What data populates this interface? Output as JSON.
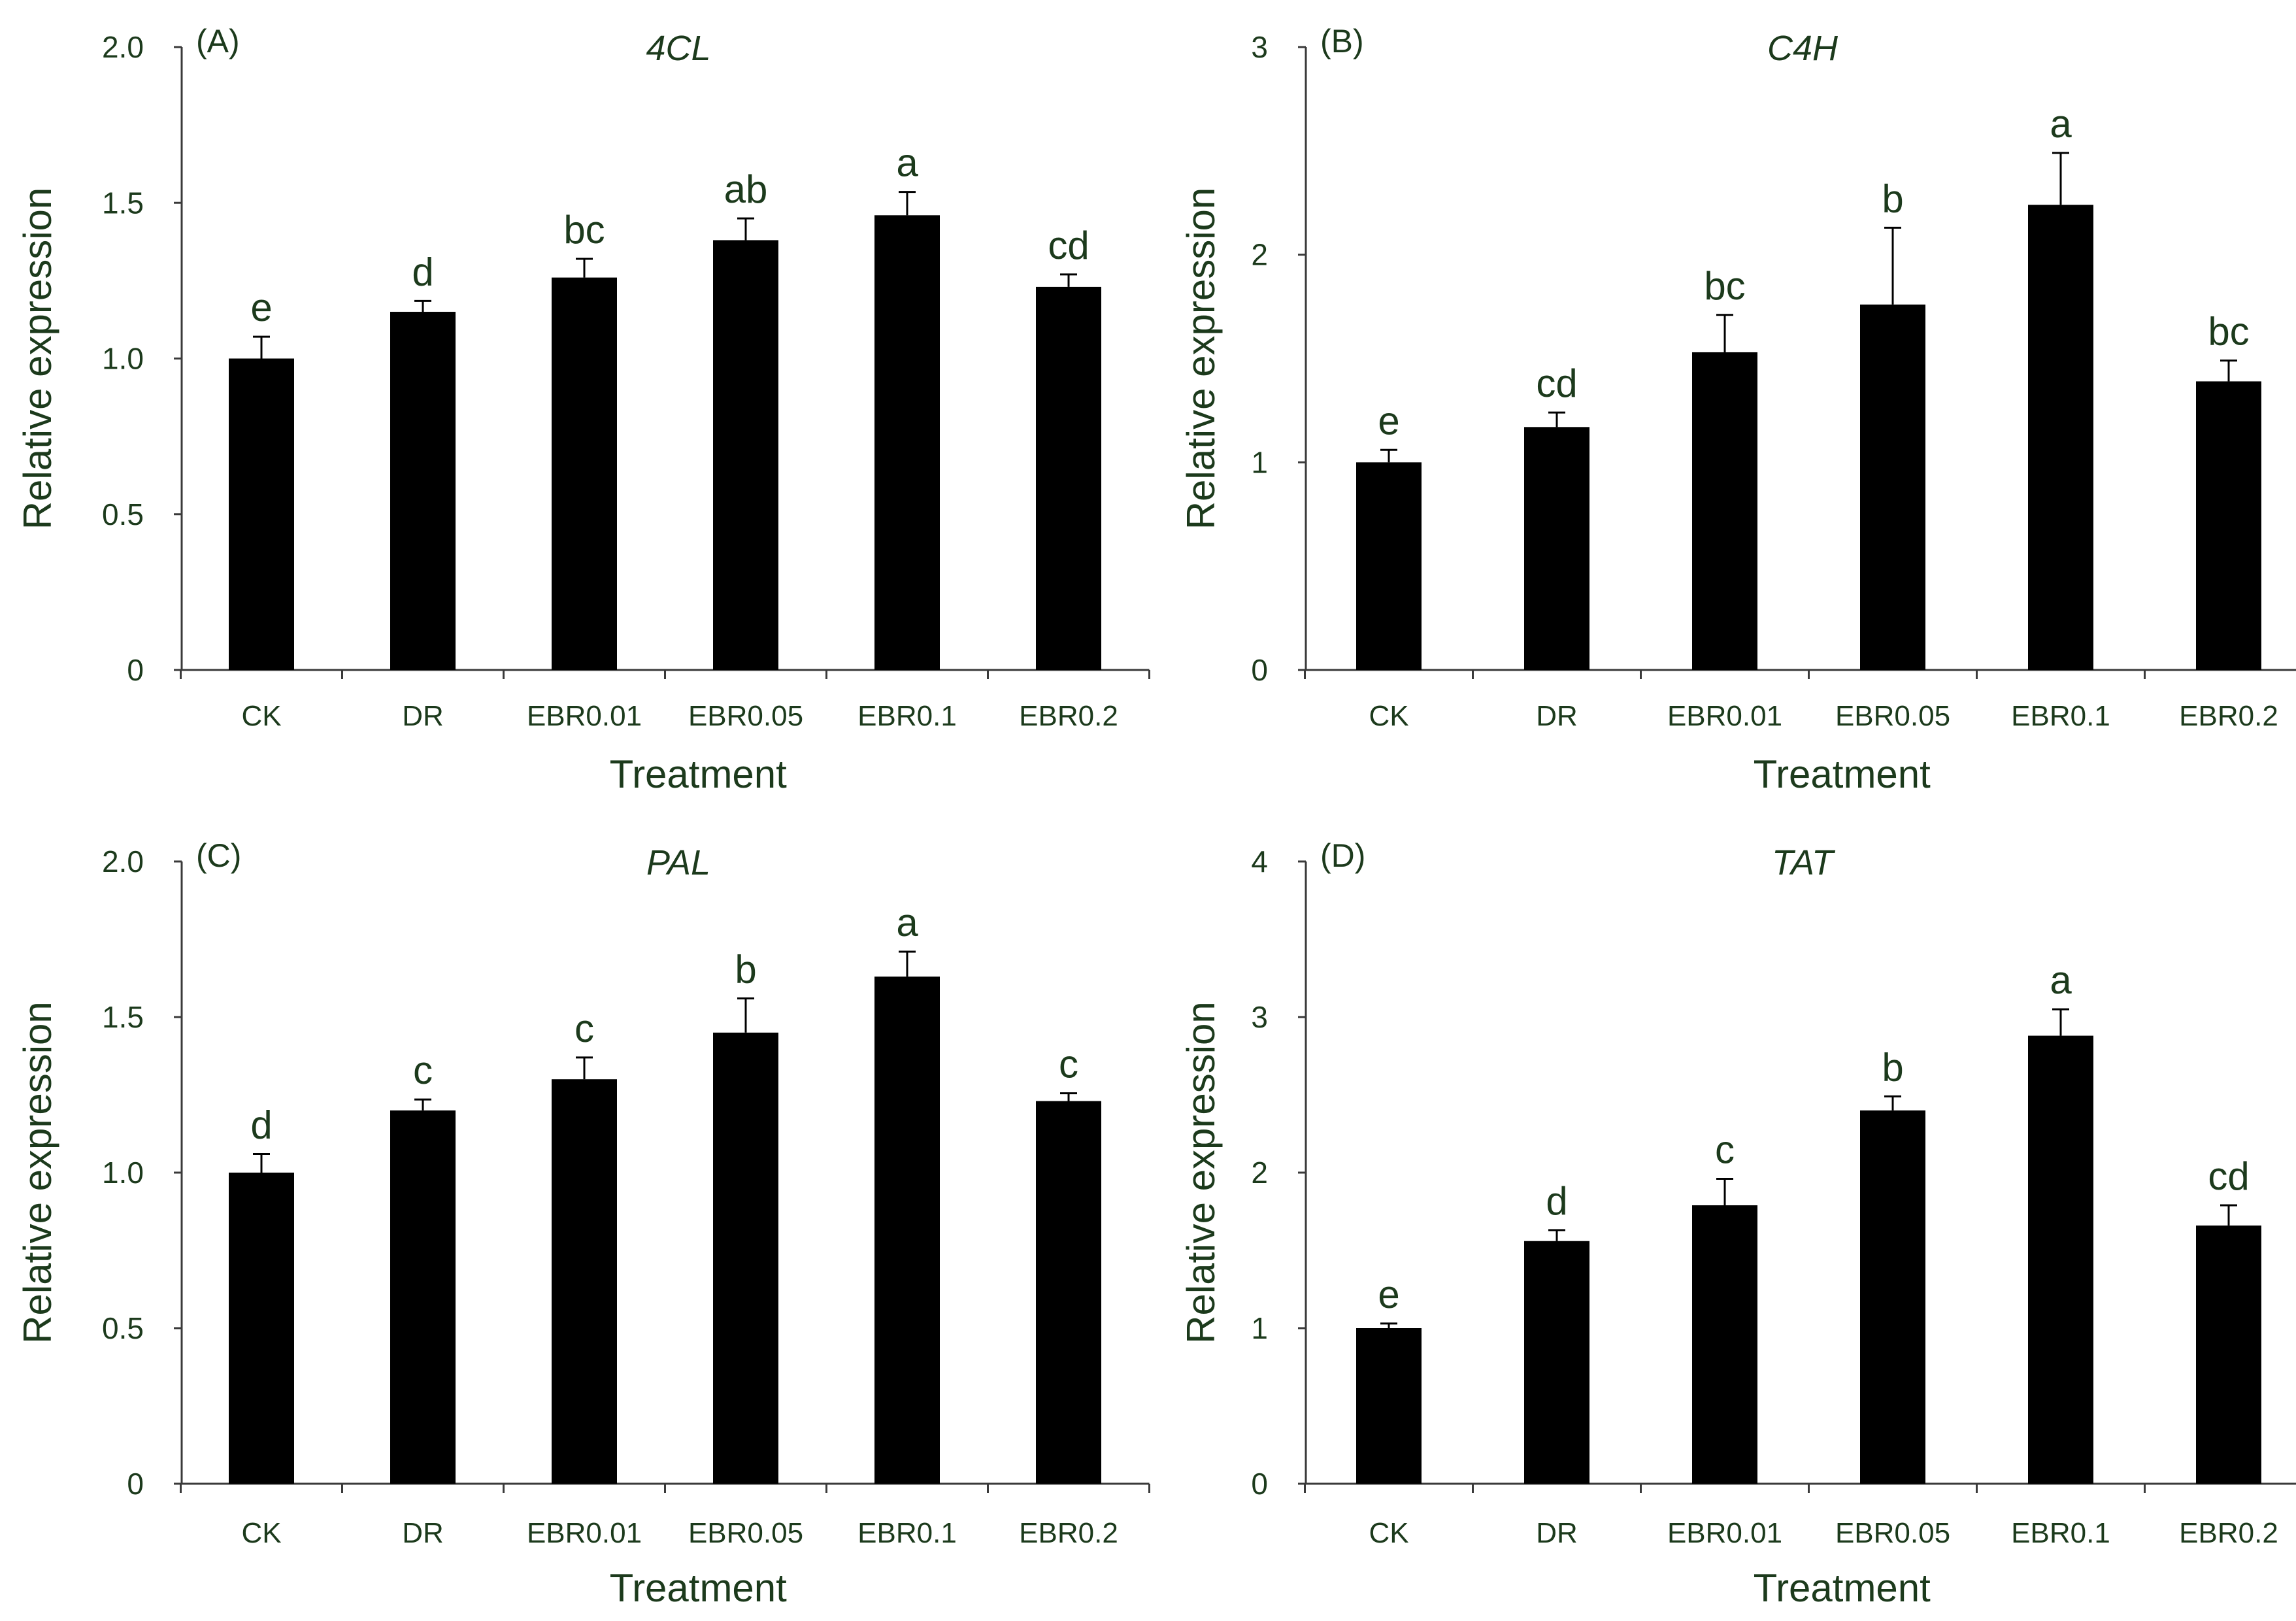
{
  "chart_data": [
    {
      "type": "bar",
      "panel_label": "(A)",
      "title": "4CL",
      "xlabel": "Treatment",
      "ylabel": "Relative expression",
      "categories": [
        "CK",
        "DR",
        "EBR0.01",
        "EBR0.05",
        "EBR0.1",
        "EBR0.2"
      ],
      "values": [
        1.0,
        1.15,
        1.26,
        1.38,
        1.46,
        1.23
      ],
      "errors": [
        0.07,
        0.035,
        0.06,
        0.07,
        0.075,
        0.04
      ],
      "significance": [
        "e",
        "d",
        "bc",
        "ab",
        "a",
        "cd"
      ],
      "ylim": [
        0,
        2.0
      ],
      "yticks": [
        0,
        0.5,
        1.0,
        1.5,
        2.0
      ],
      "ytick_labels": [
        "0",
        "0.5",
        "1.0",
        "1.5",
        "2.0"
      ],
      "grid": false,
      "bar_color": "#000000"
    },
    {
      "type": "bar",
      "panel_label": "(B)",
      "title": "C4H",
      "xlabel": "Treatment",
      "ylabel": "Relative expression",
      "categories": [
        "CK",
        "DR",
        "EBR0.01",
        "EBR0.05",
        "EBR0.1",
        "EBR0.2"
      ],
      "values": [
        1.0,
        1.17,
        1.53,
        1.76,
        2.24,
        1.39
      ],
      "errors": [
        0.06,
        0.07,
        0.18,
        0.37,
        0.25,
        0.1
      ],
      "significance": [
        "e",
        "cd",
        "bc",
        "b",
        "a",
        "bc"
      ],
      "ylim": [
        0,
        3
      ],
      "yticks": [
        0,
        1,
        2,
        3
      ],
      "ytick_labels": [
        "0",
        "1",
        "2",
        "3"
      ],
      "grid": false,
      "bar_color": "#000000"
    },
    {
      "type": "bar",
      "panel_label": "(C)",
      "title": "PAL",
      "xlabel": "Treatment",
      "ylabel": "Relative expression",
      "categories": [
        "CK",
        "DR",
        "EBR0.01",
        "EBR0.05",
        "EBR0.1",
        "EBR0.2"
      ],
      "values": [
        1.0,
        1.2,
        1.3,
        1.45,
        1.63,
        1.23
      ],
      "errors": [
        0.06,
        0.035,
        0.07,
        0.11,
        0.08,
        0.025
      ],
      "significance": [
        "d",
        "c",
        "c",
        "b",
        "a",
        "c"
      ],
      "ylim": [
        0,
        2.0
      ],
      "yticks": [
        0,
        0.5,
        1.0,
        1.5,
        2.0
      ],
      "ytick_labels": [
        "0",
        "0.5",
        "1.0",
        "1.5",
        "2.0"
      ],
      "grid": false,
      "bar_color": "#000000"
    },
    {
      "type": "bar",
      "panel_label": "(D)",
      "title": "TAT",
      "xlabel": "Treatment",
      "ylabel": "Relative expression",
      "categories": [
        "CK",
        "DR",
        "EBR0.01",
        "EBR0.05",
        "EBR0.1",
        "EBR0.2"
      ],
      "values": [
        1.0,
        1.56,
        1.79,
        2.4,
        2.88,
        1.66
      ],
      "errors": [
        0.03,
        0.07,
        0.17,
        0.09,
        0.17,
        0.13
      ],
      "significance": [
        "e",
        "d",
        "c",
        "b",
        "a",
        "cd"
      ],
      "ylim": [
        0,
        4
      ],
      "yticks": [
        0,
        1,
        2,
        3,
        4
      ],
      "ytick_labels": [
        "0",
        "1",
        "2",
        "3",
        "4"
      ],
      "grid": false,
      "bar_color": "#000000"
    }
  ]
}
